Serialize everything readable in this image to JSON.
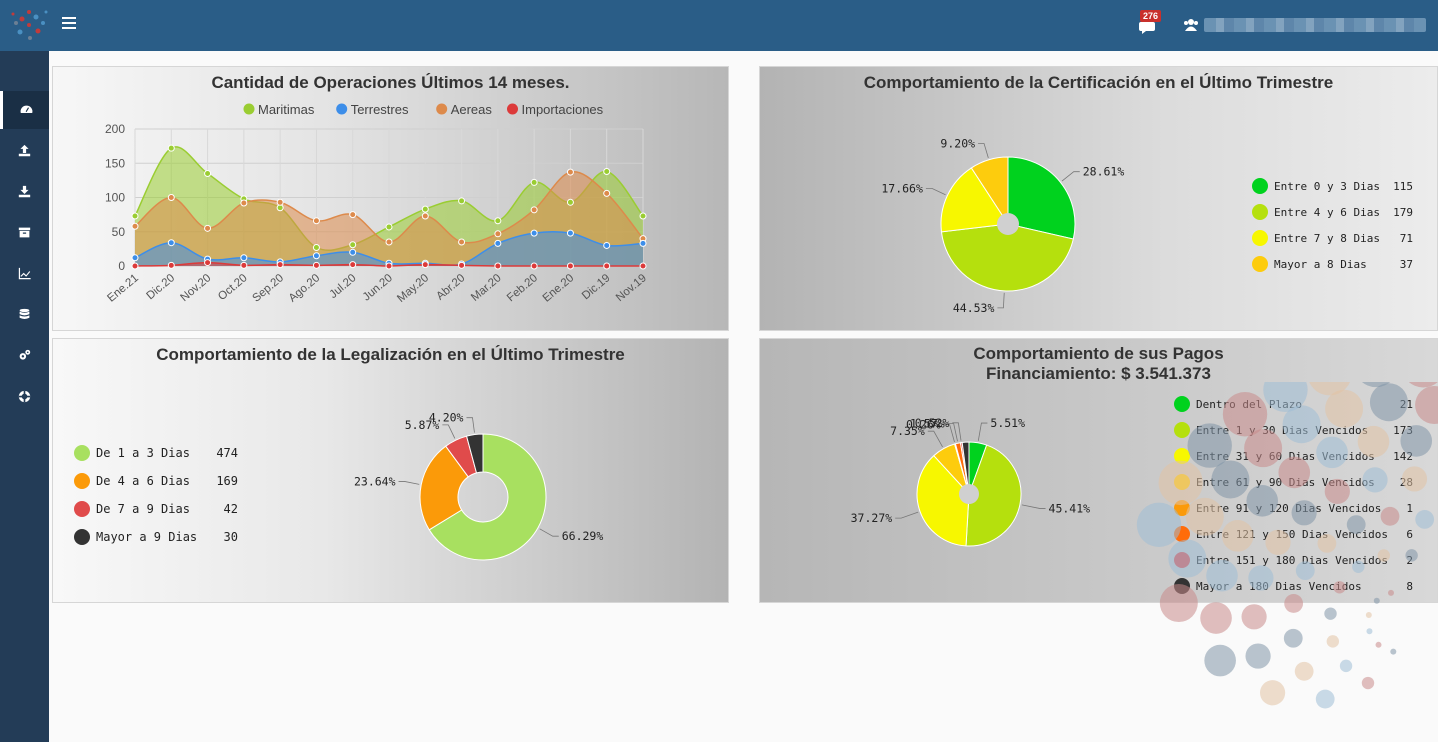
{
  "header": {
    "notifications_count": "276"
  },
  "sidebar": {
    "items": [
      {
        "icon": "dashboard-icon"
      },
      {
        "icon": "upload-icon"
      },
      {
        "icon": "download-icon"
      },
      {
        "icon": "archive-icon"
      },
      {
        "icon": "line-chart-icon"
      },
      {
        "icon": "database-icon"
      },
      {
        "icon": "cogs-icon"
      },
      {
        "icon": "life-ring-icon"
      }
    ]
  },
  "charts": {
    "operations": {
      "title": "Cantidad de Operaciones Últimos 14 meses."
    },
    "certification": {
      "title": "Comportamiento de la Certificación en el Último Trimestre"
    },
    "legalization": {
      "title": "Comportamiento de la Legalización en el Último Trimestre"
    },
    "payments": {
      "title": "Comportamiento de sus Pagos",
      "subtitle": "Financiamiento: $ 3.541.373"
    }
  },
  "chart_data": [
    {
      "type": "area",
      "title": "Cantidad de Operaciones Últimos 14 meses.",
      "categories": [
        "Ene.21",
        "Dic.20",
        "Nov.20",
        "Oct.20",
        "Sep.20",
        "Ago.20",
        "Jul.20",
        "Jun.20",
        "May.20",
        "Abr.20",
        "Mar.20",
        "Feb.20",
        "Ene.20",
        "Dic.19",
        "Nov.19"
      ],
      "ylim": [
        0,
        200
      ],
      "yticks": [
        "0",
        "50",
        "100",
        "150",
        "200"
      ],
      "grid": true,
      "legend": "top",
      "series": [
        {
          "name": "Maritimas",
          "color": "#9acd32",
          "values": [
            73,
            172,
            135,
            98,
            85,
            27,
            31,
            57,
            83,
            95,
            66,
            122,
            93,
            138,
            73
          ]
        },
        {
          "name": "Terrestres",
          "color": "#3d8ee9",
          "values": [
            12,
            34,
            10,
            12,
            6,
            15,
            20,
            4,
            4,
            3,
            33,
            48,
            48,
            30,
            33
          ]
        },
        {
          "name": "Aereas",
          "color": "#dd8a4b",
          "values": [
            58,
            100,
            55,
            92,
            93,
            66,
            75,
            35,
            73,
            35,
            47,
            82,
            137,
            106,
            40
          ]
        },
        {
          "name": "Importaciones",
          "color": "#dc3a3a",
          "values": [
            0,
            1,
            5,
            1,
            2,
            1,
            2,
            0,
            2,
            1,
            0,
            0,
            0,
            0,
            0
          ]
        }
      ]
    },
    {
      "type": "pie",
      "title": "Comportamiento de la Certificación en el Último Trimestre",
      "legend": "right",
      "slices": [
        {
          "label": "Entre 0 y 3 Dias",
          "value": 115,
          "percent": "28.61%",
          "color": "#00d21e"
        },
        {
          "label": "Entre 4 y 6 Dias",
          "value": 179,
          "percent": "44.53%",
          "color": "#b5e00d"
        },
        {
          "label": "Entre 7 y 8 Dias",
          "value": 71,
          "percent": "17.66%",
          "color": "#f7f700"
        },
        {
          "label": "Mayor a 8 Dias",
          "value": 37,
          "percent": "9.20%",
          "color": "#fdcc0d"
        }
      ]
    },
    {
      "type": "pie",
      "title": "Comportamiento de la Legalización en el Último Trimestre",
      "legend": "left",
      "slices": [
        {
          "label": "De 1 a 3 Dias",
          "value": 474,
          "percent": "66.29%",
          "color": "#a8e060"
        },
        {
          "label": "De 4 a 6 Dias",
          "value": 169,
          "percent": "23.64%",
          "color": "#fb9a09"
        },
        {
          "label": "De 7 a 9 Dias",
          "value": 42,
          "percent": "5.87%",
          "color": "#e04b4b"
        },
        {
          "label": "Mayor a 9 Dias",
          "value": 30,
          "percent": "4.20%",
          "color": "#333333"
        }
      ]
    },
    {
      "type": "pie",
      "title": "Comportamiento de sus Pagos",
      "subtitle": "Financiamiento: $ 3.541.373",
      "legend": "right",
      "slices": [
        {
          "label": "Dentro del Plazo",
          "value": 21,
          "percent": "5.51%",
          "color": "#00d21e"
        },
        {
          "label": "Entre 1 y 30 Dias Vencidos",
          "value": 173,
          "percent": "45.41%",
          "color": "#b5e00d"
        },
        {
          "label": "Entre 31 y 60 Dias Vencidos",
          "value": 142,
          "percent": "37.27%",
          "color": "#f7f700"
        },
        {
          "label": "Entre 61 y 90 Dias Vencidos",
          "value": 28,
          "percent": "7.35%",
          "color": "#fdcc0d"
        },
        {
          "label": "Entre 91 y 120 Dias Vencidos",
          "value": 1,
          "percent": "0.26%",
          "color": "#fb9a09"
        },
        {
          "label": "Entre 121 y 150 Dias Vencidos",
          "value": 6,
          "percent": "1.57%",
          "color": "#ff6c0a"
        },
        {
          "label": "Entre 151 y 180 Dias Vencidos",
          "value": 2,
          "percent": "0.52%",
          "color": "#e04b4b"
        },
        {
          "label": "Mayor a 180 Dias Vencidos",
          "value": 8,
          "percent": "",
          "color": "#333333"
        }
      ]
    }
  ]
}
